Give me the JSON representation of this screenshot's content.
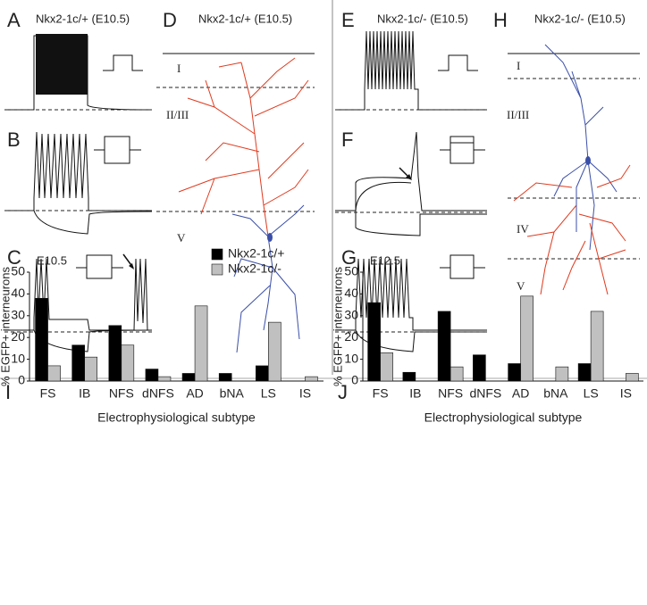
{
  "figure": {
    "panels": [
      {
        "letter": "A",
        "title": "Nkx2-1c/+ (E10.5)"
      },
      {
        "letter": "B"
      },
      {
        "letter": "C"
      },
      {
        "letter": "D",
        "title": "Nkx2-1c/+ (E10.5)"
      },
      {
        "letter": "E",
        "title": "Nkx2-1c/- (E10.5)"
      },
      {
        "letter": "F"
      },
      {
        "letter": "G"
      },
      {
        "letter": "H",
        "title": "Nkx2-1c/- (E10.5)"
      }
    ],
    "layers_d": [
      "I",
      "II/III",
      "V"
    ],
    "layers_h": [
      "I",
      "II/III",
      "IV",
      "V"
    ]
  },
  "chart_data": [
    {
      "type": "bar",
      "panel": "I",
      "label": "E10.5",
      "categories": [
        "FS",
        "IB",
        "NFS",
        "dNFS",
        "AD",
        "bNA",
        "LS",
        "IS"
      ],
      "series": [
        {
          "name": "Nkx2-1c/+",
          "color": "#000000",
          "values": [
            38,
            16.5,
            25.5,
            5.5,
            3.5,
            3.5,
            7,
            0
          ]
        },
        {
          "name": "Nkx2-1c/-",
          "color": "#c0c0c0",
          "values": [
            7,
            11,
            16.5,
            2,
            34.5,
            0,
            27,
            2
          ]
        }
      ],
      "ylim": [
        0,
        50
      ],
      "yticks": [
        0,
        10,
        20,
        30,
        40,
        50
      ],
      "xlabel": "Electrophysiological subtype",
      "ylabel": "% EGFP+ interneurons",
      "legend": "upper right"
    },
    {
      "type": "bar",
      "panel": "J",
      "label": "E12.5",
      "categories": [
        "FS",
        "IB",
        "NFS",
        "dNFS",
        "AD",
        "bNA",
        "LS",
        "IS"
      ],
      "series": [
        {
          "color": "#000000",
          "values": [
            36,
            4,
            32,
            12,
            8,
            0,
            8,
            0
          ]
        },
        {
          "color": "#c0c0c0",
          "values": [
            13,
            0,
            6.5,
            0,
            39,
            6.5,
            32,
            3.5
          ]
        }
      ],
      "ylim": [
        0,
        50
      ],
      "yticks": [
        0,
        10,
        20,
        30,
        40,
        50
      ],
      "xlabel": "Electrophysiological subtype",
      "ylabel": "% EGFP+ interneurons"
    }
  ]
}
